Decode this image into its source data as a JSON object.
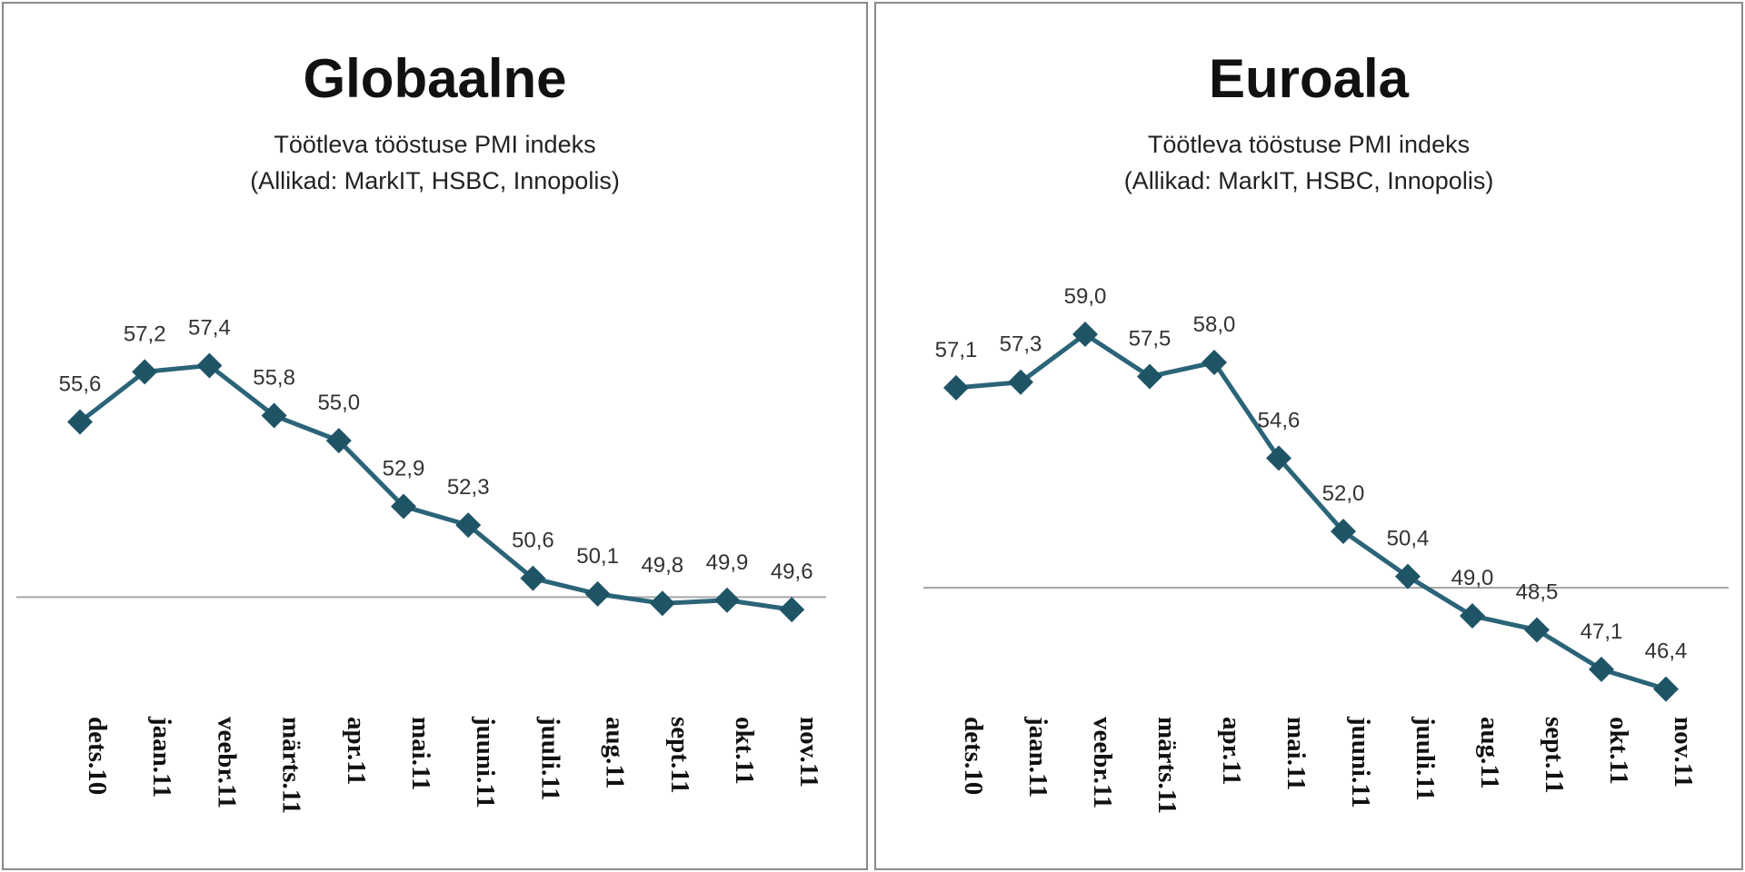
{
  "colors": {
    "line": "#2b6478",
    "marker": "#1f5466",
    "reference_line": "#a8a8a8"
  },
  "chart_data": [
    {
      "type": "line",
      "title": "Globaalne",
      "subtitle": [
        "Töötleva tööstuse PMI indeks",
        "(Allikad: MarkIT, HSBC, Innopolis)"
      ],
      "categories": [
        "dets.10",
        "jaan.11",
        "veebr.11",
        "märts.11",
        "apr.11",
        "mai.11",
        "juuni.11",
        "juuli.11",
        "aug.11",
        "sept.11",
        "okt.11",
        "nov.11"
      ],
      "values": [
        55.6,
        57.2,
        57.4,
        55.8,
        55.0,
        52.9,
        52.3,
        50.6,
        50.1,
        49.8,
        49.9,
        49.6
      ],
      "data_labels": [
        "55,6",
        "57,2",
        "57,4",
        "55,8",
        "55,0",
        "52,9",
        "52,3",
        "50,6",
        "50,1",
        "49,8",
        "49,9",
        "49,6"
      ],
      "reference_line": 50,
      "ylim": [
        44,
        62
      ],
      "marker": "diamond",
      "grid": false,
      "legend": "none"
    },
    {
      "type": "line",
      "title": "Euroala",
      "subtitle": [
        "Töötleva tööstuse PMI indeks",
        "(Allikad: MarkIT, HSBC, Innopolis)"
      ],
      "categories": [
        "dets.10",
        "jaan.11",
        "veebr.11",
        "märts.11",
        "apr.11",
        "mai.11",
        "juuni.11",
        "juuli.11",
        "aug.11",
        "sept.11",
        "okt.11",
        "nov.11"
      ],
      "values": [
        57.1,
        57.3,
        59.0,
        57.5,
        58.0,
        54.6,
        52.0,
        50.4,
        49.0,
        48.5,
        47.1,
        46.4
      ],
      "data_labels": [
        "57,1",
        "57,3",
        "59,0",
        "57,5",
        "58,0",
        "54,6",
        "52,0",
        "50,4",
        "49,0",
        "48,5",
        "47,1",
        "46,4"
      ],
      "reference_line": 50,
      "ylim": [
        43,
        63
      ],
      "marker": "diamond",
      "grid": false,
      "legend": "none"
    }
  ]
}
